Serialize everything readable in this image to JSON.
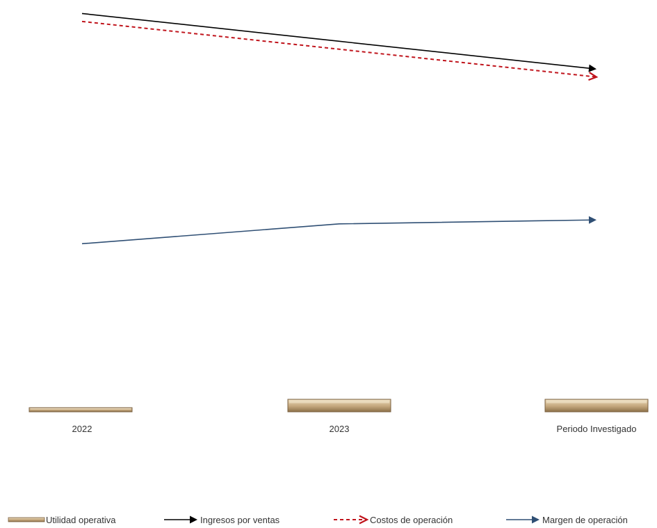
{
  "chart_data": {
    "type": "bar",
    "categories": [
      "2022",
      "2023",
      "Periodo Investigado"
    ],
    "series": [
      {
        "name": "Utilidad operativa",
        "type": "bar",
        "color": "#c4a77d",
        "values": [
          1,
          3,
          3
        ]
      },
      {
        "name": "Ingresos por ventas",
        "type": "line",
        "color": "#000000",
        "line_style": "solid",
        "end_marker": "arrow",
        "values": [
          100,
          93,
          86
        ]
      },
      {
        "name": "Costos de operación",
        "type": "line",
        "color": "#c0141c",
        "line_style": "dashed",
        "end_marker": "arrow",
        "values": [
          98,
          91,
          84
        ]
      },
      {
        "name": "Margen de operación",
        "type": "line",
        "color": "#2f4f74",
        "line_style": "solid",
        "end_marker": "arrow",
        "values": [
          42,
          47,
          48
        ]
      }
    ],
    "ylim": [
      0,
      102
    ],
    "grid": false,
    "y_axis_visible": false,
    "legend_position": "bottom"
  }
}
